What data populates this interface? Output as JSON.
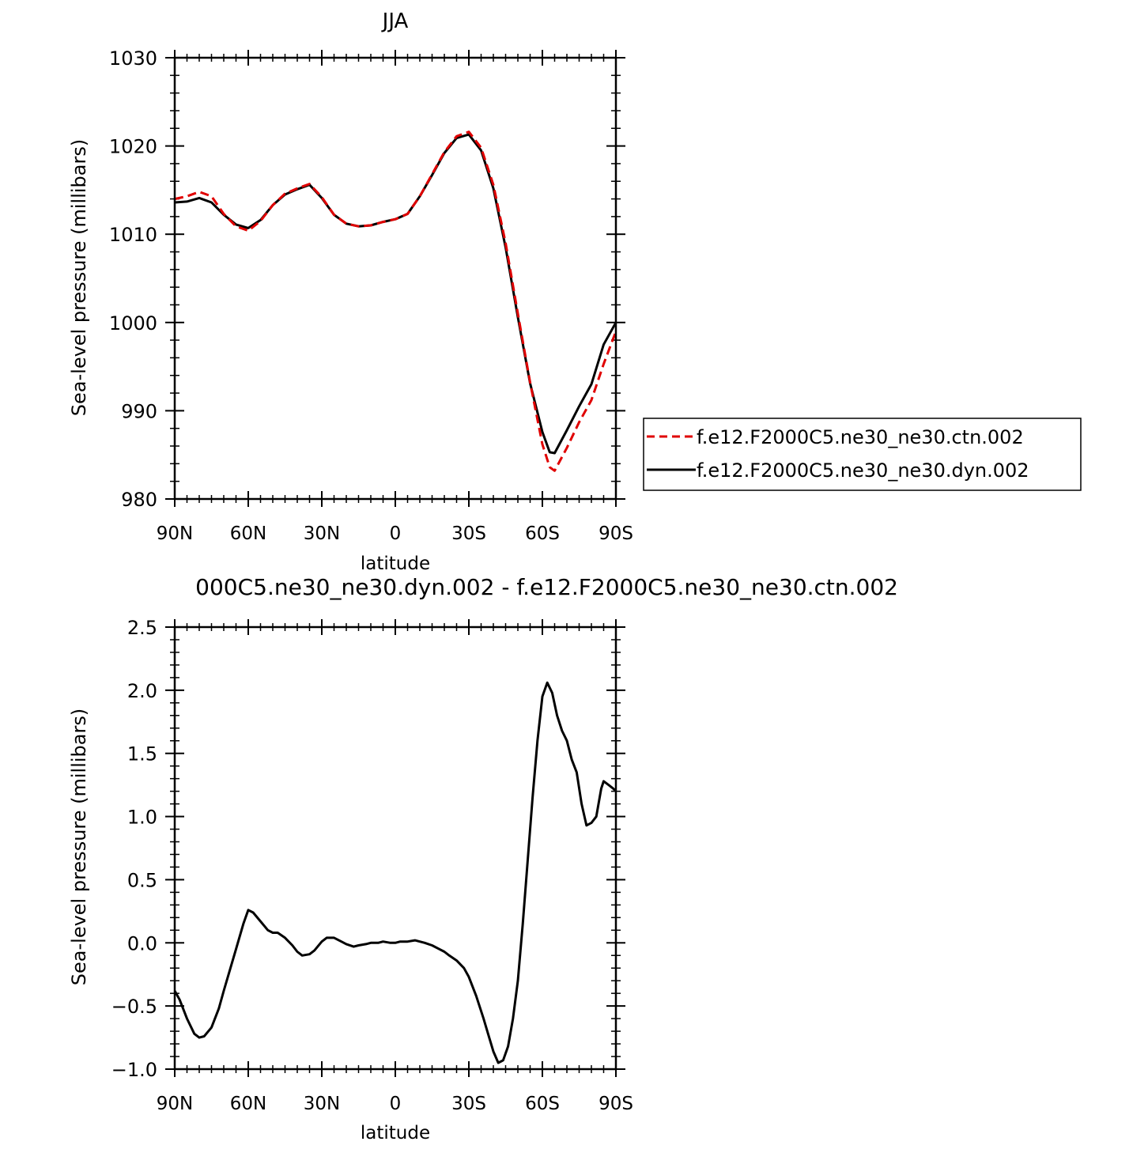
{
  "chart_data": [
    {
      "type": "line",
      "title": "JJA",
      "xlabel": "latitude",
      "ylabel": "Sea-level pressure (millibars)",
      "xlim": [
        90,
        -90
      ],
      "ylim": [
        980,
        1030
      ],
      "xticks": [
        {
          "value": 90,
          "label": "90N"
        },
        {
          "value": 60,
          "label": "60N"
        },
        {
          "value": 30,
          "label": "30N"
        },
        {
          "value": 0,
          "label": "0"
        },
        {
          "value": -30,
          "label": "30S"
        },
        {
          "value": -60,
          "label": "60S"
        },
        {
          "value": -90,
          "label": "90S"
        }
      ],
      "yticks": [
        {
          "value": 1030,
          "label": "1030"
        },
        {
          "value": 1020,
          "label": "1020"
        },
        {
          "value": 1010,
          "label": "1010"
        },
        {
          "value": 1000,
          "label": "1000"
        },
        {
          "value": 990,
          "label": "990"
        },
        {
          "value": 980,
          "label": "980"
        }
      ],
      "legend": "right",
      "series": [
        {
          "name": "f.e12.F2000C5.ne30_ne30.ctn.002",
          "color": "#e00000",
          "dash": "dashed",
          "x": [
            90,
            85,
            80,
            75,
            70,
            65,
            60,
            55,
            50,
            45,
            40,
            35,
            30,
            25,
            20,
            15,
            10,
            5,
            0,
            -5,
            -10,
            -15,
            -20,
            -25,
            -30,
            -35,
            -40,
            -45,
            -50,
            -55,
            -60,
            -63,
            -65,
            -70,
            -75,
            -80,
            -85,
            -90
          ],
          "y": [
            1014.0,
            1014.3,
            1014.8,
            1014.3,
            1012.3,
            1010.9,
            1010.4,
            1011.5,
            1013.3,
            1014.6,
            1015.2,
            1015.7,
            1014.2,
            1012.2,
            1011.2,
            1010.9,
            1011.0,
            1011.4,
            1011.7,
            1012.3,
            1014.3,
            1016.8,
            1019.3,
            1021.1,
            1021.6,
            1019.8,
            1015.6,
            1009.0,
            1001.0,
            993.2,
            986.2,
            983.6,
            983.2,
            985.8,
            988.7,
            991.2,
            995.3,
            999.0
          ]
        },
        {
          "name": "f.e12.F2000C5.ne30_ne30.dyn.002",
          "color": "#000000",
          "dash": "solid",
          "x": [
            90,
            85,
            80,
            75,
            70,
            65,
            60,
            55,
            50,
            45,
            40,
            35,
            30,
            25,
            20,
            15,
            10,
            5,
            0,
            -5,
            -10,
            -15,
            -20,
            -25,
            -30,
            -35,
            -40,
            -45,
            -50,
            -55,
            -60,
            -63,
            -65,
            -70,
            -75,
            -80,
            -85,
            -90
          ],
          "y": [
            1013.6,
            1013.7,
            1014.1,
            1013.6,
            1012.2,
            1011.1,
            1010.7,
            1011.6,
            1013.3,
            1014.5,
            1015.1,
            1015.6,
            1014.1,
            1012.2,
            1011.2,
            1010.9,
            1011.0,
            1011.4,
            1011.7,
            1012.3,
            1014.3,
            1016.7,
            1019.2,
            1020.9,
            1021.3,
            1019.5,
            1015.2,
            1008.5,
            1000.6,
            993.1,
            987.6,
            985.3,
            985.2,
            987.8,
            990.5,
            993.0,
            997.5,
            1000.0
          ]
        }
      ]
    },
    {
      "type": "line",
      "title": "000C5.ne30_ne30.dyn.002 - f.e12.F2000C5.ne30_ne30.ctn.002",
      "xlabel": "latitude",
      "ylabel": "Sea-level pressure (millibars)",
      "xlim": [
        90,
        -90
      ],
      "ylim": [
        -1.0,
        2.5
      ],
      "xticks": [
        {
          "value": 90,
          "label": "90N"
        },
        {
          "value": 60,
          "label": "60N"
        },
        {
          "value": 30,
          "label": "30N"
        },
        {
          "value": 0,
          "label": "0"
        },
        {
          "value": -30,
          "label": "30S"
        },
        {
          "value": -60,
          "label": "60S"
        },
        {
          "value": -90,
          "label": "90S"
        }
      ],
      "yticks": [
        {
          "value": 2.5,
          "label": "2.5"
        },
        {
          "value": 2.0,
          "label": "2.0"
        },
        {
          "value": 1.5,
          "label": "1.5"
        },
        {
          "value": 1.0,
          "label": "1.0"
        },
        {
          "value": 0.5,
          "label": "0.5"
        },
        {
          "value": 0.0,
          "label": "0.0"
        },
        {
          "value": -0.5,
          "label": "-0.5"
        },
        {
          "value": -1.0,
          "label": "-1.0"
        }
      ],
      "series": [
        {
          "color": "#000000",
          "dash": "solid",
          "x": [
            90,
            88,
            85,
            82,
            80,
            78,
            75,
            72,
            70,
            65,
            62,
            60,
            58,
            55,
            52,
            50,
            48,
            45,
            42,
            40,
            38,
            35,
            33,
            30,
            28,
            25,
            22,
            20,
            17,
            15,
            12,
            10,
            7,
            5,
            2,
            0,
            -2,
            -5,
            -8,
            -10,
            -12,
            -15,
            -18,
            -20,
            -22,
            -25,
            -28,
            -30,
            -33,
            -36,
            -38,
            -40,
            -42,
            -44,
            -46,
            -48,
            -50,
            -52,
            -54,
            -56,
            -58,
            -60,
            -62,
            -64,
            -66,
            -68,
            -70,
            -72,
            -74,
            -76,
            -78,
            -80,
            -82,
            -84,
            -85,
            -87,
            -89,
            -90
          ],
          "y": [
            -0.38,
            -0.45,
            -0.6,
            -0.72,
            -0.75,
            -0.74,
            -0.67,
            -0.52,
            -0.38,
            -0.05,
            0.15,
            0.26,
            0.24,
            0.17,
            0.1,
            0.08,
            0.08,
            0.04,
            -0.02,
            -0.07,
            -0.1,
            -0.09,
            -0.06,
            0.01,
            0.04,
            0.04,
            0.01,
            -0.01,
            -0.03,
            -0.02,
            -0.01,
            0.0,
            0.0,
            0.01,
            0.0,
            0.0,
            0.01,
            0.01,
            0.02,
            0.01,
            0.0,
            -0.02,
            -0.05,
            -0.07,
            -0.1,
            -0.14,
            -0.2,
            -0.27,
            -0.42,
            -0.6,
            -0.73,
            -0.86,
            -0.95,
            -0.93,
            -0.82,
            -0.6,
            -0.3,
            0.15,
            0.65,
            1.15,
            1.6,
            1.95,
            2.06,
            1.98,
            1.8,
            1.68,
            1.6,
            1.45,
            1.35,
            1.1,
            0.93,
            0.95,
            1.0,
            1.22,
            1.28,
            1.25,
            1.22,
            1.2
          ]
        }
      ]
    }
  ]
}
